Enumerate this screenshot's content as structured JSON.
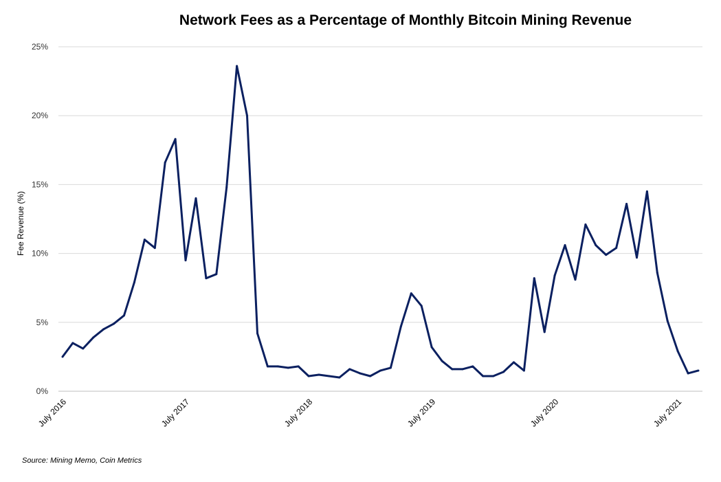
{
  "chart_data": {
    "type": "line",
    "title": "Network Fees as a Percentage of Monthly Bitcoin Mining Revenue",
    "ylabel": "Fee Revenue (%)",
    "xlabel": "",
    "ylim": [
      0,
      25
    ],
    "yticks": [
      "0%",
      "5%",
      "10%",
      "15%",
      "20%",
      "25%"
    ],
    "ytick_values": [
      0,
      5,
      10,
      15,
      20,
      25
    ],
    "xtick_labels": [
      "July 2016",
      "July 2017",
      "July 2018",
      "July 2019",
      "July 2020",
      "July 2021"
    ],
    "xtick_index": [
      0,
      12,
      24,
      36,
      48,
      60
    ],
    "grid": true,
    "legend": "none",
    "line_color": "#0b2060",
    "series": [
      {
        "values": [
          2.5,
          3.5,
          3.1,
          3.9,
          4.5,
          4.9,
          5.5,
          7.9,
          11.0,
          10.4,
          16.6,
          18.3,
          9.5,
          14.0,
          8.2,
          8.5,
          14.8,
          23.6,
          20.0,
          4.2,
          1.8,
          1.8,
          1.7,
          1.8,
          1.1,
          1.2,
          1.1,
          1.0,
          1.6,
          1.3,
          1.1,
          1.5,
          1.7,
          4.7,
          7.1,
          6.2,
          3.2,
          2.2,
          1.6,
          1.6,
          1.8,
          1.1,
          1.1,
          1.4,
          2.1,
          1.5,
          8.2,
          4.3,
          8.4,
          10.6,
          8.1,
          12.1,
          10.6,
          9.9,
          10.4,
          13.6,
          9.7,
          14.5,
          8.6,
          5.1,
          2.9,
          1.3,
          1.5
        ]
      }
    ]
  },
  "source": "Source: Mining Memo, Coin Metrics"
}
